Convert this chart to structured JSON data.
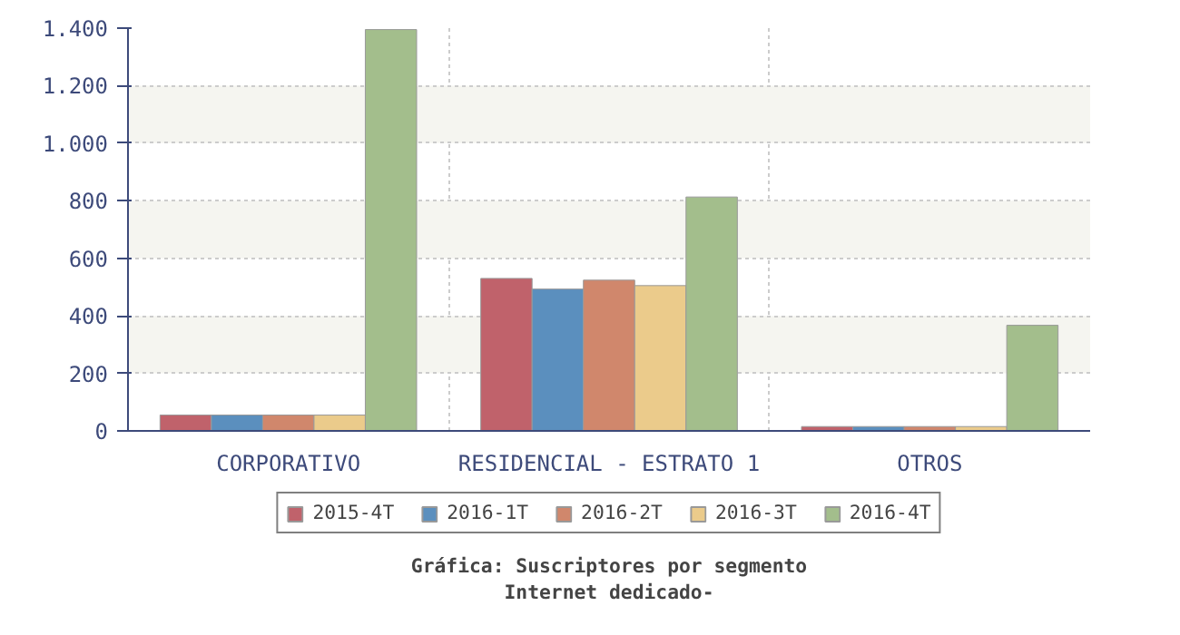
{
  "chart_data": {
    "type": "bar",
    "title": "Gráfica: Suscriptores por segmento",
    "subtitle": "Internet dedicado-",
    "categories": [
      "CORPORATIVO",
      "RESIDENCIAL - ESTRATO 1",
      "OTROS"
    ],
    "series": [
      {
        "name": "2015-4T",
        "color": "#c0626b",
        "values": [
          55,
          530,
          15
        ]
      },
      {
        "name": "2016-1T",
        "color": "#5b8fbe",
        "values": [
          55,
          493,
          15
        ]
      },
      {
        "name": "2016-2T",
        "color": "#d0876c",
        "values": [
          55,
          524,
          15
        ]
      },
      {
        "name": "2016-3T",
        "color": "#ebcb8b",
        "values": [
          55,
          505,
          15
        ]
      },
      {
        "name": "2016-4T",
        "color": "#a3be8c",
        "values": [
          1395,
          813,
          367
        ]
      }
    ],
    "ylim": [
      0,
      1400
    ],
    "yticks": [
      {
        "value": 0,
        "label": "0"
      },
      {
        "value": 200,
        "label": "200"
      },
      {
        "value": 400,
        "label": "400"
      },
      {
        "value": 600,
        "label": "600"
      },
      {
        "value": 800,
        "label": "800"
      },
      {
        "value": 1000,
        "label": "1.000"
      },
      {
        "value": 1200,
        "label": "1.200"
      },
      {
        "value": 1400,
        "label": "1.400"
      }
    ],
    "grid": true,
    "legend": "bottom"
  }
}
